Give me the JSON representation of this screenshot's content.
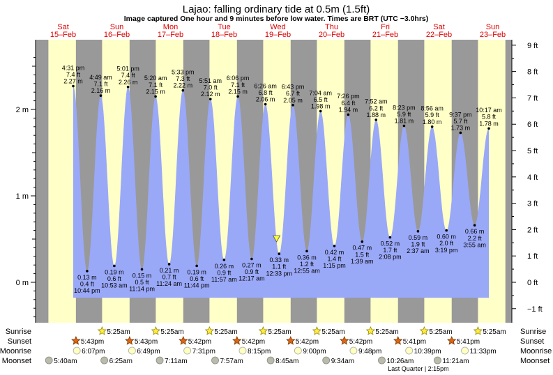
{
  "header": {
    "title": "Lajao: falling  ordinary tide at 0.5m (1.5ft)",
    "subtitle": "Image captured One hour and 9 minutes before low water. Times are BRT (UTC −3.0hrs)"
  },
  "days": [
    {
      "dow": "Sat",
      "date": "15–Feb"
    },
    {
      "dow": "Sun",
      "date": "16–Feb"
    },
    {
      "dow": "Mon",
      "date": "17–Feb"
    },
    {
      "dow": "Tue",
      "date": "18–Feb"
    },
    {
      "dow": "Wed",
      "date": "19–Feb"
    },
    {
      "dow": "Thu",
      "date": "20–Feb"
    },
    {
      "dow": "Fri",
      "date": "21–Feb"
    },
    {
      "dow": "Sat",
      "date": "22–Feb"
    },
    {
      "dow": "Sun",
      "date": "23–Feb"
    }
  ],
  "chart_data": {
    "type": "area",
    "title": "Lajao: falling  ordinary tide at 0.5m (1.5ft)",
    "y_left": {
      "unit": "m",
      "range": [
        -0.42,
        2.65
      ],
      "ticks": [
        {
          "v": 0,
          "label": "0 m"
        },
        {
          "v": 1,
          "label": "1 m"
        },
        {
          "v": 2,
          "label": "2 m"
        }
      ]
    },
    "y_right": {
      "unit": "ft",
      "ticks": [
        "−1 ft",
        "0 ft",
        "1 ft",
        "2 ft",
        "3 ft",
        "4 ft",
        "5 ft",
        "6 ft",
        "7 ft",
        "8 ft",
        "9 ft"
      ]
    },
    "x_range_hours": [
      0,
      216
    ],
    "colors": {
      "day": "#ffffc8",
      "night": "#999999",
      "tide": "#9aa8f8",
      "header_red": "#dd0000",
      "low_marker": "#ffff33"
    },
    "nights": [
      [
        -4,
        5.42
      ],
      [
        17.72,
        29.42
      ],
      [
        41.72,
        53.42
      ],
      [
        65.7,
        77.42
      ],
      [
        89.7,
        101.42
      ],
      [
        113.7,
        125.42
      ],
      [
        137.7,
        149.42
      ],
      [
        161.68,
        173.42
      ],
      [
        185.68,
        197.42
      ],
      [
        209.68,
        220
      ]
    ],
    "extremes": [
      {
        "t": 16.52,
        "m": 2.27,
        "type": "high",
        "time": "4:31 pm",
        "ft": "7.4 ft",
        "mlabel": "2.27 m"
      },
      {
        "t": 22.73,
        "m": 0.13,
        "type": "low",
        "time": "10:44 pm",
        "ft": "0.4 ft",
        "mlabel": "0.13 m"
      },
      {
        "t": 28.82,
        "m": 2.16,
        "type": "high",
        "time": "4:49 am",
        "ft": "7.1 ft",
        "mlabel": "2.16 m"
      },
      {
        "t": 34.88,
        "m": 0.19,
        "type": "low",
        "time": "10:53 am",
        "ft": "0.6 ft",
        "mlabel": "0.19 m"
      },
      {
        "t": 41.02,
        "m": 2.26,
        "type": "high",
        "time": "5:01 pm",
        "ft": "7.4 ft",
        "mlabel": "2.26 m"
      },
      {
        "t": 47.23,
        "m": 0.15,
        "type": "low",
        "time": "11:14 pm",
        "ft": "0.5 ft",
        "mlabel": "0.15 m"
      },
      {
        "t": 53.33,
        "m": 2.15,
        "type": "high",
        "time": "5:20 am",
        "ft": "7.1 ft",
        "mlabel": "2.15 m"
      },
      {
        "t": 59.4,
        "m": 0.21,
        "type": "low",
        "time": "11:24 am",
        "ft": "0.7 ft",
        "mlabel": "0.21 m"
      },
      {
        "t": 65.55,
        "m": 2.22,
        "type": "high",
        "time": "5:33 pm",
        "ft": "7.3 ft",
        "mlabel": "2.22 m"
      },
      {
        "t": 71.73,
        "m": 0.19,
        "type": "low",
        "time": "11:44 pm",
        "ft": "0.6 ft",
        "mlabel": "0.19 m"
      },
      {
        "t": 77.85,
        "m": 2.12,
        "type": "high",
        "time": "5:51 am",
        "ft": "7.0 ft",
        "mlabel": "2.12 m"
      },
      {
        "t": 83.95,
        "m": 0.26,
        "type": "low",
        "time": "11:57 am",
        "ft": "0.9 ft",
        "mlabel": "0.26 m"
      },
      {
        "t": 90.1,
        "m": 2.15,
        "type": "high",
        "time": "6:06 pm",
        "ft": "7.1 ft",
        "mlabel": "2.15 m"
      },
      {
        "t": 96.28,
        "m": 0.27,
        "type": "low",
        "time": "12:17 am",
        "ft": "0.9 ft",
        "mlabel": "0.27 m"
      },
      {
        "t": 102.43,
        "m": 2.06,
        "type": "high",
        "time": "6:26 am",
        "ft": "6.8 ft",
        "mlabel": "2.06 m"
      },
      {
        "t": 108.55,
        "m": 0.33,
        "type": "low",
        "time": "12:33 pm",
        "ft": "1.1 ft",
        "mlabel": "0.33 m"
      },
      {
        "t": 114.72,
        "m": 2.05,
        "type": "high",
        "time": "6:43 pm",
        "ft": "6.7 ft",
        "mlabel": "2.05 m"
      },
      {
        "t": 120.92,
        "m": 0.36,
        "type": "low",
        "time": "12:55 am",
        "ft": "1.2 ft",
        "mlabel": "0.36 m"
      },
      {
        "t": 127.07,
        "m": 1.98,
        "type": "high",
        "time": "7:04 am",
        "ft": "6.5 ft",
        "mlabel": "1.98 m"
      },
      {
        "t": 133.25,
        "m": 0.42,
        "type": "low",
        "time": "1:15 pm",
        "ft": "1.4 ft",
        "mlabel": "0.42 m"
      },
      {
        "t": 139.43,
        "m": 1.94,
        "type": "high",
        "time": "7:26 pm",
        "ft": "6.4 ft",
        "mlabel": "1.94 m"
      },
      {
        "t": 145.65,
        "m": 0.47,
        "type": "low",
        "time": "1:39 am",
        "ft": "1.5 ft",
        "mlabel": "0.47 m"
      },
      {
        "t": 151.87,
        "m": 1.88,
        "type": "high",
        "time": "7:52 am",
        "ft": "6.2 ft",
        "mlabel": "1.88 m"
      },
      {
        "t": 158.13,
        "m": 0.52,
        "type": "low",
        "time": "2:08 pm",
        "ft": "1.7 ft",
        "mlabel": "0.52 m"
      },
      {
        "t": 164.38,
        "m": 1.81,
        "type": "high",
        "time": "8:23 pm",
        "ft": "5.9 ft",
        "mlabel": "1.81 m"
      },
      {
        "t": 170.62,
        "m": 0.59,
        "type": "low",
        "time": "2:37 am",
        "ft": "1.9 ft",
        "mlabel": "0.59 m"
      },
      {
        "t": 176.93,
        "m": 1.8,
        "type": "high",
        "time": "8:56 am",
        "ft": "5.9 ft",
        "mlabel": "1.80 m"
      },
      {
        "t": 183.32,
        "m": 0.6,
        "type": "low",
        "time": "3:19 pm",
        "ft": "2.0 ft",
        "mlabel": "0.60 m"
      },
      {
        "t": 189.62,
        "m": 1.73,
        "type": "high",
        "time": "9:37 pm",
        "ft": "5.7 ft",
        "mlabel": "1.73 m"
      },
      {
        "t": 195.92,
        "m": 0.66,
        "type": "low",
        "time": "3:55 am",
        "ft": "2.2 ft",
        "mlabel": "0.66 m"
      },
      {
        "t": 202.28,
        "m": 1.78,
        "type": "high",
        "time": "10:17 am",
        "ft": "5.8 ft",
        "mlabel": "1.78 m"
      }
    ],
    "current_level": {
      "t": 107.4,
      "m": 0.5
    }
  },
  "almanac": {
    "row_labels": {
      "sunrise": "Sunrise",
      "sunset": "Sunset",
      "moonrise": "Moonrise",
      "moonset": "Moonset"
    },
    "sunrise": [
      {
        "t": 29.42,
        "time": "5:25am"
      },
      {
        "t": 53.42,
        "time": "5:25am"
      },
      {
        "t": 77.42,
        "time": "5:25am"
      },
      {
        "t": 101.42,
        "time": "5:25am"
      },
      {
        "t": 125.42,
        "time": "5:25am"
      },
      {
        "t": 149.42,
        "time": "5:25am"
      },
      {
        "t": 173.42,
        "time": "5:25am"
      },
      {
        "t": 197.42,
        "time": "5:25am"
      }
    ],
    "sunset": [
      {
        "t": 17.72,
        "time": "5:43pm"
      },
      {
        "t": 41.72,
        "time": "5:43pm"
      },
      {
        "t": 65.7,
        "time": "5:42pm"
      },
      {
        "t": 89.7,
        "time": "5:42pm"
      },
      {
        "t": 113.7,
        "time": "5:42pm"
      },
      {
        "t": 137.7,
        "time": "5:42pm"
      },
      {
        "t": 161.68,
        "time": "5:41pm"
      },
      {
        "t": 185.68,
        "time": "5:41pm"
      }
    ],
    "moonrise": [
      {
        "t": 18.12,
        "time": "6:07pm"
      },
      {
        "t": 42.82,
        "time": "6:49pm"
      },
      {
        "t": 67.52,
        "time": "7:31pm"
      },
      {
        "t": 92.25,
        "time": "8:15pm"
      },
      {
        "t": 117.0,
        "time": "9:00pm"
      },
      {
        "t": 141.8,
        "time": "9:48pm"
      },
      {
        "t": 166.65,
        "time": "10:39pm"
      },
      {
        "t": 191.55,
        "time": "11:33pm"
      }
    ],
    "moonset": [
      {
        "t": 5.67,
        "time": "5:40am"
      },
      {
        "t": 30.42,
        "time": "6:25am"
      },
      {
        "t": 55.18,
        "time": "7:11am"
      },
      {
        "t": 79.95,
        "time": "7:57am"
      },
      {
        "t": 104.75,
        "time": "8:45am"
      },
      {
        "t": 129.57,
        "time": "9:34am"
      },
      {
        "t": 154.43,
        "time": "10:26am"
      },
      {
        "t": 179.35,
        "time": "11:21am"
      }
    ],
    "moon_phase": {
      "label": "Last Quarter | 2:15pm"
    }
  }
}
